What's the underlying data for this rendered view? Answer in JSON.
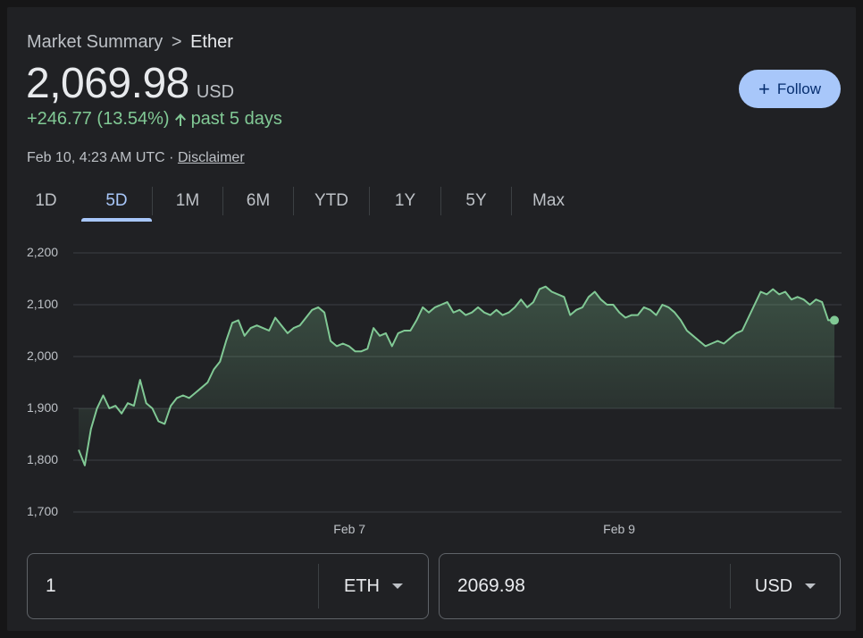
{
  "breadcrumb": {
    "parent": "Market Summary",
    "separator": ">",
    "current": "Ether"
  },
  "quote": {
    "price": "2,069.98",
    "currency": "USD",
    "change": "+246.77 (13.54%)",
    "change_period": "past 5 days",
    "timestamp": "Feb 10, 4:23 AM UTC ·",
    "disclaimer": "Disclaimer"
  },
  "follow_button": {
    "label": "Follow",
    "icon": "plus-icon"
  },
  "tabs": [
    {
      "label": "1D",
      "active": false
    },
    {
      "label": "5D",
      "active": true
    },
    {
      "label": "1M",
      "active": false
    },
    {
      "label": "6M",
      "active": false
    },
    {
      "label": "YTD",
      "active": false
    },
    {
      "label": "1Y",
      "active": false
    },
    {
      "label": "5Y",
      "active": false
    },
    {
      "label": "Max",
      "active": false
    }
  ],
  "colors": {
    "line": "#81c995",
    "accent": "#a8c7fa",
    "grid": "#3c4043"
  },
  "chart_data": {
    "type": "area",
    "title": "",
    "xlabel": "",
    "ylabel": "",
    "ylim": [
      1700,
      2200
    ],
    "yticks": [
      "2,200",
      "2,100",
      "2,000",
      "1,900",
      "1,800",
      "1,700"
    ],
    "ytick_values": [
      2200,
      2100,
      2000,
      1900,
      1800,
      1700
    ],
    "xticks": [
      {
        "label": "Feb 7",
        "t": 0.3584
      },
      {
        "label": "Feb 9",
        "t": 0.7152
      }
    ],
    "grid": true,
    "series": [
      {
        "values": [
          1820,
          1790,
          1860,
          1900,
          1925,
          1900,
          1905,
          1890,
          1910,
          1905,
          1955,
          1910,
          1900,
          1875,
          1870,
          1905,
          1920,
          1925,
          1920,
          1930,
          1940,
          1950,
          1975,
          1990,
          2030,
          2065,
          2070,
          2040,
          2055,
          2060,
          2055,
          2050,
          2075,
          2060,
          2045,
          2055,
          2060,
          2075,
          2090,
          2095,
          2085,
          2030,
          2020,
          2025,
          2020,
          2010,
          2010,
          2015,
          2055,
          2040,
          2045,
          2020,
          2045,
          2050,
          2050,
          2070,
          2095,
          2085,
          2095,
          2100,
          2105,
          2085,
          2090,
          2080,
          2085,
          2095,
          2085,
          2080,
          2090,
          2080,
          2085,
          2095,
          2110,
          2095,
          2105,
          2130,
          2135,
          2125,
          2120,
          2115,
          2080,
          2090,
          2095,
          2115,
          2125,
          2110,
          2100,
          2100,
          2085,
          2075,
          2080,
          2080,
          2095,
          2090,
          2080,
          2100,
          2095,
          2085,
          2070,
          2050,
          2040,
          2030,
          2020,
          2025,
          2030,
          2025,
          2035,
          2045,
          2050,
          2075,
          2100,
          2125,
          2120,
          2130,
          2120,
          2125,
          2110,
          2115,
          2110,
          2100,
          2110,
          2105,
          2070,
          2070
        ]
      }
    ],
    "last_value": 2069.98
  },
  "converter": {
    "left": {
      "value": "1",
      "unit": "ETH"
    },
    "right": {
      "value": "2069.98",
      "unit": "USD"
    }
  }
}
